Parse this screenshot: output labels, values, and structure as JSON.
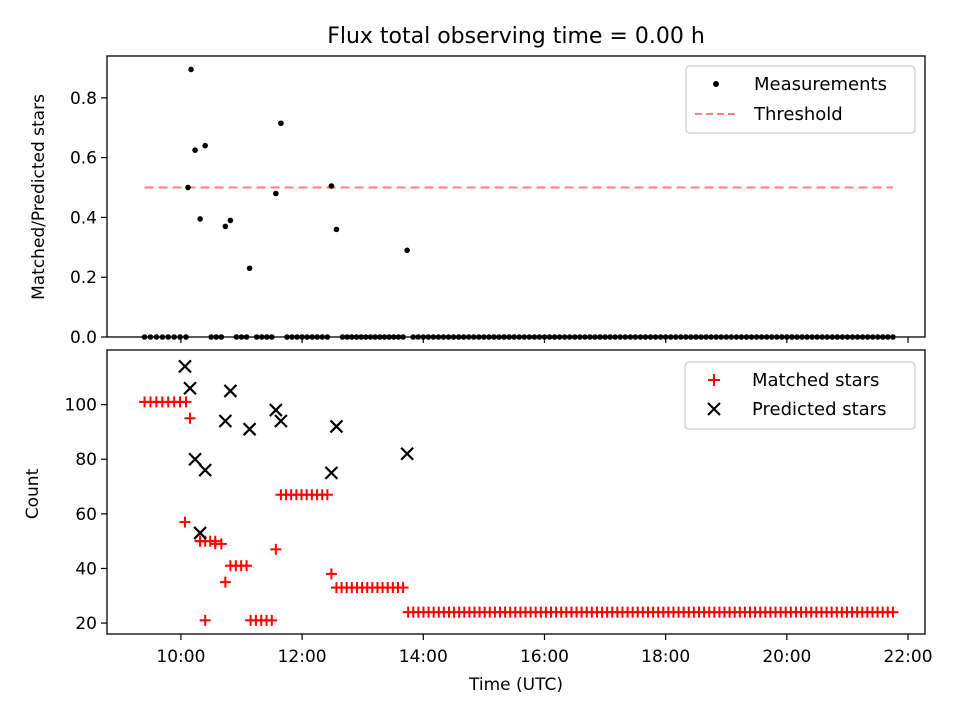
{
  "figure": {
    "title": "Flux total observing time = 0.00 h"
  },
  "chart_data": [
    {
      "type": "scatter",
      "ylabel": "Matched/Predicted stars",
      "ylim": [
        0,
        0.94
      ],
      "xlim_hours": [
        8.78,
        22.28
      ],
      "yticks": [
        0.0,
        0.2,
        0.4,
        0.6,
        0.8
      ],
      "ytick_labels": [
        "0.0",
        "0.2",
        "0.4",
        "0.6",
        "0.8"
      ],
      "grid": false,
      "legend": "top-right",
      "series": [
        {
          "name": "Measurements",
          "marker": "dot",
          "color": "#000000",
          "points": [
            [
              "10:07",
              0.5
            ],
            [
              "10:10",
              0.895
            ],
            [
              "10:14",
              0.625
            ],
            [
              "10:19",
              0.395
            ],
            [
              "10:24",
              0.64
            ],
            [
              "10:44",
              0.37
            ],
            [
              "10:49",
              0.39
            ],
            [
              "11:08",
              0.23
            ],
            [
              "11:34",
              0.48
            ],
            [
              "11:39",
              0.715
            ],
            [
              "12:29",
              0.505
            ],
            [
              "12:34",
              0.36
            ],
            [
              "13:44",
              0.29
            ]
          ],
          "zero_runs": [
            [
              "09:24",
              "10:05",
              8
            ],
            [
              "10:30",
              "10:40",
              3
            ],
            [
              "10:55",
              "11:05",
              3
            ],
            [
              "11:15",
              "11:30",
              4
            ],
            [
              "11:45",
              "12:25",
              9
            ],
            [
              "12:40",
              "13:40",
              14
            ],
            [
              "13:50",
              "21:45",
              96
            ]
          ]
        },
        {
          "name": "Threshold",
          "marker": "dashed-line",
          "color": "#ff7f7f",
          "x": [
            "09:24",
            "21:45"
          ],
          "y": [
            0.5,
            0.5
          ]
        }
      ]
    },
    {
      "type": "scatter",
      "ylabel": "Count",
      "xlabel": "Time (UTC)",
      "ylim": [
        16,
        120
      ],
      "xlim_hours": [
        8.78,
        22.28
      ],
      "yticks": [
        20,
        40,
        60,
        80,
        100
      ],
      "ytick_labels": [
        "20",
        "40",
        "60",
        "80",
        "100"
      ],
      "xticks": [
        10,
        12,
        14,
        16,
        18,
        20,
        22
      ],
      "xtick_labels": [
        "10:00",
        "12:00",
        "14:00",
        "16:00",
        "18:00",
        "20:00",
        "22:00"
      ],
      "grid": false,
      "legend": "top-right",
      "series": [
        {
          "name": "Matched stars",
          "marker": "plus",
          "color": "#ff0000",
          "runs": [
            [
              "09:24",
              "10:05",
              8,
              101
            ],
            [
              "10:19",
              "10:34",
              4,
              50
            ],
            [
              "10:34",
              "10:40",
              2,
              49
            ],
            [
              "10:49",
              "11:05",
              4,
              41
            ],
            [
              "11:09",
              "11:30",
              5,
              21
            ],
            [
              "11:39",
              "12:25",
              10,
              67
            ],
            [
              "12:34",
              "13:40",
              14,
              33
            ],
            [
              "13:45",
              "21:45",
              96,
              24
            ]
          ],
          "points": [
            [
              "10:04",
              57
            ],
            [
              "10:09",
              95
            ],
            [
              "10:19",
              50
            ],
            [
              "10:24",
              21
            ],
            [
              "10:44",
              35
            ],
            [
              "11:34",
              47
            ],
            [
              "12:29",
              38
            ]
          ]
        },
        {
          "name": "Predicted stars",
          "marker": "x",
          "color": "#000000",
          "points": [
            [
              "10:04",
              114
            ],
            [
              "10:09",
              106
            ],
            [
              "10:14",
              80
            ],
            [
              "10:19",
              53
            ],
            [
              "10:24",
              76
            ],
            [
              "10:44",
              94
            ],
            [
              "10:49",
              105
            ],
            [
              "11:08",
              91
            ],
            [
              "11:34",
              98
            ],
            [
              "11:39",
              94
            ],
            [
              "12:29",
              75
            ],
            [
              "12:34",
              92
            ],
            [
              "13:44",
              82
            ]
          ]
        }
      ]
    }
  ]
}
